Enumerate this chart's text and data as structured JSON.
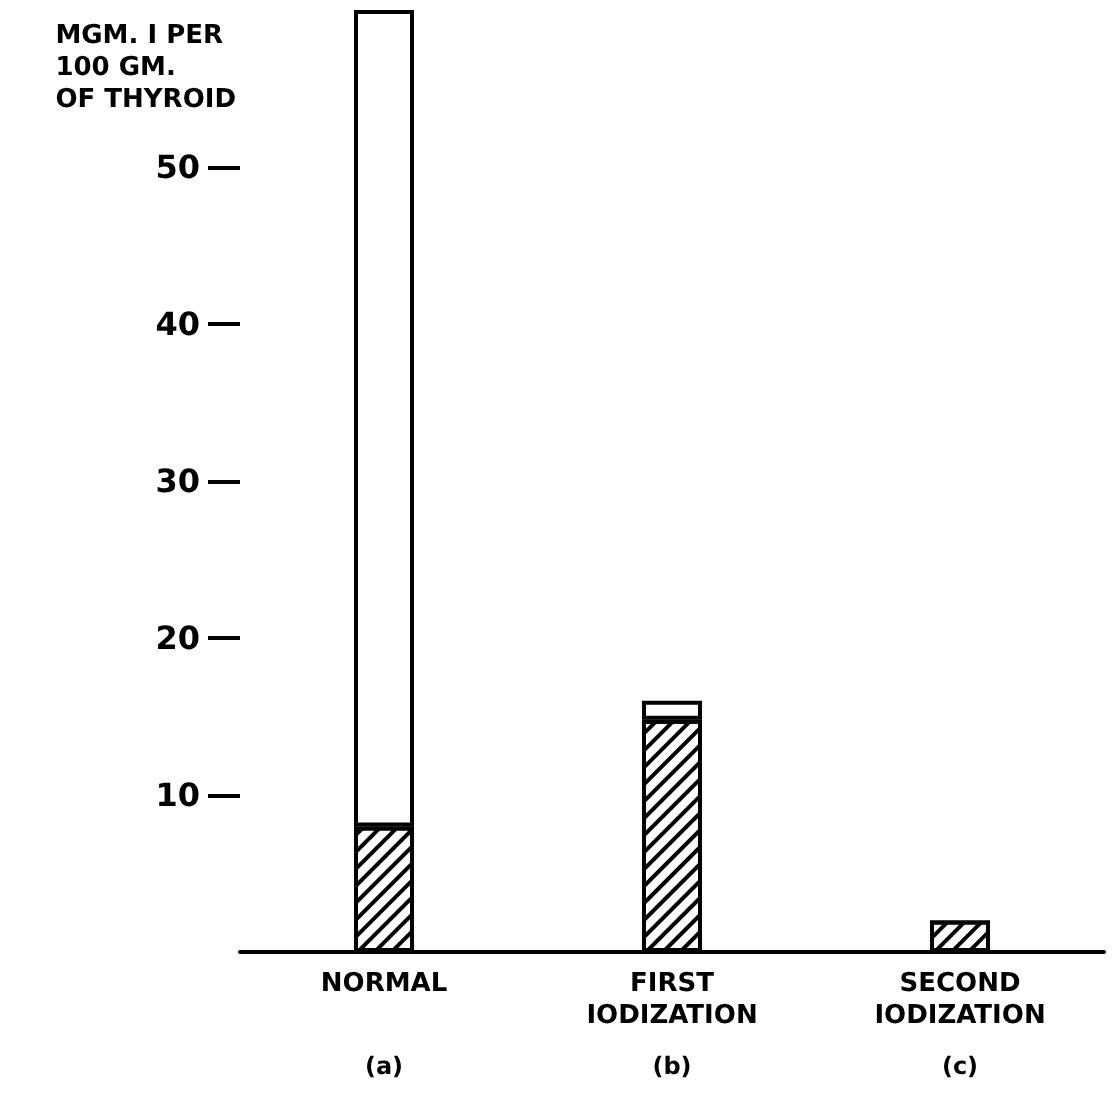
{
  "chart_data": {
    "type": "bar",
    "ylabel": "MGM. I PER 100 GM. OF THYROID",
    "categories": [
      "NORMAL",
      "FIRST IODIZATION",
      "SECOND IODIZATION"
    ],
    "stacked": true,
    "series": [
      {
        "color": "#000000",
        "values": [
          8,
          14.8,
          2
        ]
      },
      {
        "color": "#ffffff",
        "values": [
          52,
          1.2,
          null
        ]
      }
    ],
    "ylim": [
      0,
      60
    ],
    "yticks": [
      10,
      20,
      30,
      40,
      50
    ],
    "grid": false,
    "annotations": [
      "(a)",
      "(b)",
      "(c)"
    ]
  }
}
